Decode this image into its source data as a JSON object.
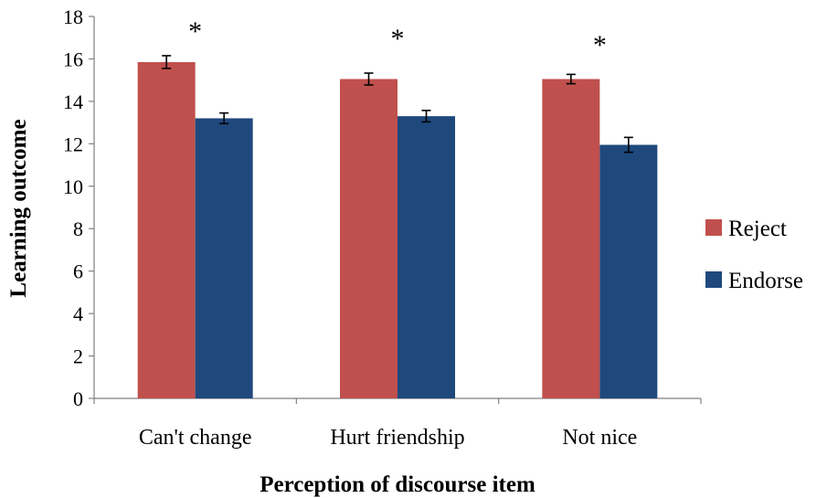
{
  "chart_data": {
    "type": "bar",
    "title": "",
    "xlabel": "Perception of discourse item",
    "ylabel": "Learning outcome",
    "ylim": [
      0,
      18
    ],
    "yticks": [
      0,
      2,
      4,
      6,
      8,
      10,
      12,
      14,
      16,
      18
    ],
    "categories": [
      "Can't change",
      "Hurt friendship",
      "Not nice"
    ],
    "series": [
      {
        "name": "Reject",
        "color": "#c0504d",
        "values": [
          15.85,
          15.05,
          15.05
        ],
        "errors": [
          0.3,
          0.28,
          0.22
        ]
      },
      {
        "name": "Endorse",
        "color": "#1f497d",
        "values": [
          13.2,
          13.3,
          11.95
        ],
        "errors": [
          0.25,
          0.27,
          0.35
        ]
      }
    ],
    "significance": [
      "*",
      "*",
      "*"
    ],
    "grid": false,
    "legend_position": "right"
  }
}
